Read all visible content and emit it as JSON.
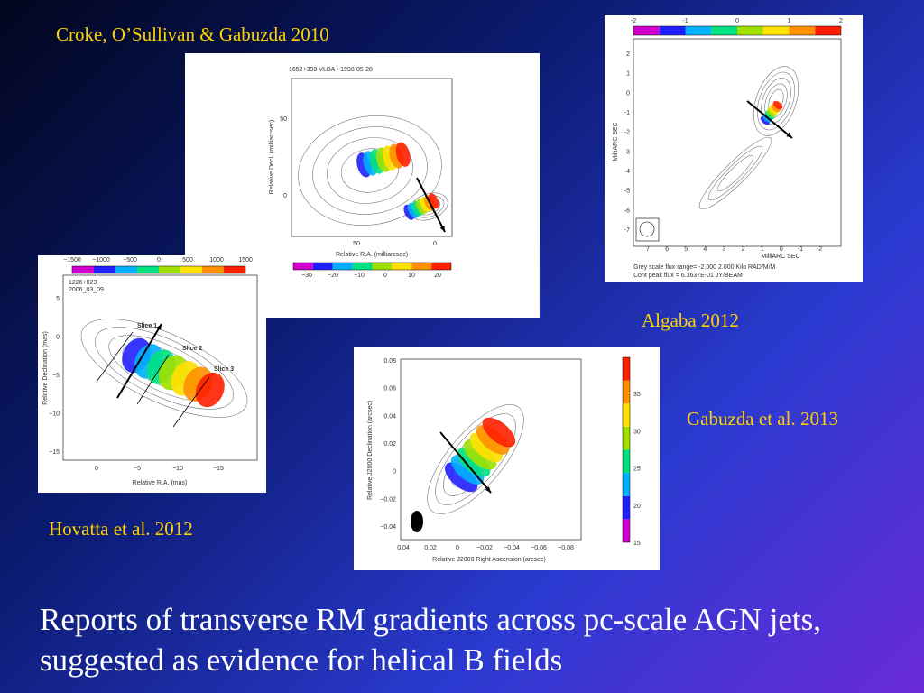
{
  "captions": [
    "Croke, O’Sullivan & Gabuzda  2010",
    "Algaba 2012",
    "Gabuzda et al. 2013",
    "Hovatta et al. 2012"
  ],
  "body": "Reports of transverse RM gradients across pc-scale AGN jets, suggested as evidence for helical B fields",
  "figures": [
    {
      "header": "1652+398  VLBA  •  1998-05-20",
      "x_label": "Relative R.A. (milliarcsec)",
      "y_label": "Relative Decl. (milliarcsec)",
      "xticks": [
        "50",
        "0"
      ],
      "yticks": [
        "50",
        "0"
      ],
      "colorbar": [
        "−30",
        "−20",
        "−10",
        "0",
        "10",
        "20"
      ]
    },
    {
      "x_label": "MilliARC SEC",
      "y_label": "MilliARC SEC",
      "xticks": [
        "7",
        "6",
        "5",
        "4",
        "3",
        "2",
        "1",
        "0",
        "-1",
        "-2"
      ],
      "yticks": [
        "2",
        "1",
        "0",
        "-1",
        "-2",
        "-3",
        "-4",
        "-5",
        "-6",
        "-7"
      ],
      "colorbar": [
        "-2",
        "-1",
        "0",
        "1",
        "2"
      ],
      "footer": [
        "Grey scale flux range= -2.000 2.000 Kilo RAD/M/M",
        "Cont peak flux =  6.3637E-01 JY/BEAM"
      ]
    },
    {
      "header": [
        "1226+023",
        "2006_03_09"
      ],
      "x_label": "Relative R.A. (mas)",
      "y_label": "Relative Declination (mas)",
      "xticks": [
        "0",
        "−5",
        "−10",
        "−15"
      ],
      "yticks": [
        "5",
        "0",
        "−5",
        "−10",
        "−15"
      ],
      "colorbar": [
        "−1500",
        "−1000",
        "−500",
        "0",
        "500",
        "1000",
        "1500"
      ],
      "slices": [
        "Slice 1",
        "Slice 2",
        "Slice 3"
      ]
    },
    {
      "x_label": "Relative J2000 Right Ascension (arcsec)",
      "y_label": "Relative J2000 Declination (arcsec)",
      "xticks": [
        "0.04",
        "0.02",
        "0",
        "−0.02",
        "−0.04",
        "−0.06",
        "−0.08"
      ],
      "yticks": [
        "0.08",
        "0.06",
        "0.04",
        "0.02",
        "0",
        "−0.02",
        "−0.04"
      ],
      "colorbar": [
        "35",
        "30",
        "25",
        "20",
        "15"
      ]
    }
  ]
}
